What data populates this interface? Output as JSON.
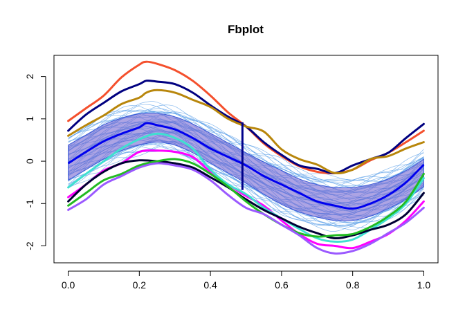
{
  "chart_data": {
    "type": "line",
    "title": "Fbplot",
    "xlabel": "",
    "ylabel": "",
    "xlim": [
      -0.04,
      1.04
    ],
    "ylim": [
      -2.4,
      2.5
    ],
    "x_ticks": [
      0.0,
      0.2,
      0.4,
      0.6,
      0.8,
      1.0
    ],
    "x_tick_labels": [
      "0.0",
      "0.2",
      "0.4",
      "0.6",
      "0.8",
      "1.0"
    ],
    "y_ticks": [
      -2,
      -1,
      0,
      1,
      2
    ],
    "y_tick_labels": [
      "-2",
      "-1",
      "0",
      "1",
      "2"
    ],
    "grid": false,
    "legend": "none",
    "central_region": {
      "color": "#6a5acd",
      "upper": [
        [
          0,
          0.38
        ],
        [
          0.05,
          0.62
        ],
        [
          0.1,
          0.86
        ],
        [
          0.15,
          1.02
        ],
        [
          0.2,
          1.12
        ],
        [
          0.25,
          1.13
        ],
        [
          0.3,
          1.05
        ],
        [
          0.35,
          0.88
        ],
        [
          0.4,
          0.66
        ],
        [
          0.45,
          0.43
        ],
        [
          0.5,
          0.2
        ],
        [
          0.55,
          -0.02
        ],
        [
          0.6,
          -0.22
        ],
        [
          0.65,
          -0.42
        ],
        [
          0.7,
          -0.55
        ],
        [
          0.75,
          -0.62
        ],
        [
          0.8,
          -0.62
        ],
        [
          0.85,
          -0.55
        ],
        [
          0.9,
          -0.42
        ],
        [
          0.95,
          -0.22
        ],
        [
          1.0,
          0.05
        ]
      ],
      "lower": [
        [
          0,
          -0.45
        ],
        [
          0.05,
          -0.2
        ],
        [
          0.1,
          0.05
        ],
        [
          0.15,
          0.25
        ],
        [
          0.2,
          0.38
        ],
        [
          0.25,
          0.45
        ],
        [
          0.3,
          0.38
        ],
        [
          0.35,
          0.2
        ],
        [
          0.4,
          -0.05
        ],
        [
          0.45,
          -0.28
        ],
        [
          0.5,
          -0.52
        ],
        [
          0.55,
          -0.78
        ],
        [
          0.6,
          -1.02
        ],
        [
          0.65,
          -1.2
        ],
        [
          0.7,
          -1.32
        ],
        [
          0.75,
          -1.4
        ],
        [
          0.8,
          -1.4
        ],
        [
          0.85,
          -1.3
        ],
        [
          0.9,
          -1.12
        ],
        [
          0.95,
          -0.9
        ],
        [
          1.0,
          -0.6
        ]
      ]
    },
    "median_curve": {
      "color": "#0000ee",
      "points": [
        [
          0,
          -0.05
        ],
        [
          0.05,
          0.22
        ],
        [
          0.1,
          0.47
        ],
        [
          0.15,
          0.65
        ],
        [
          0.2,
          0.8
        ],
        [
          0.22,
          0.9
        ],
        [
          0.25,
          0.85
        ],
        [
          0.3,
          0.75
        ],
        [
          0.35,
          0.55
        ],
        [
          0.4,
          0.3
        ],
        [
          0.45,
          0.1
        ],
        [
          0.5,
          -0.1
        ],
        [
          0.55,
          -0.35
        ],
        [
          0.6,
          -0.55
        ],
        [
          0.65,
          -0.75
        ],
        [
          0.7,
          -0.95
        ],
        [
          0.75,
          -1.05
        ],
        [
          0.8,
          -1.12
        ],
        [
          0.85,
          -1.0
        ],
        [
          0.9,
          -0.8
        ],
        [
          0.95,
          -0.5
        ],
        [
          1.0,
          -0.08
        ]
      ]
    },
    "whisker": {
      "color": "#00008b",
      "x": 0.49,
      "y_range": [
        -0.68,
        0.92
      ]
    },
    "series": [
      {
        "color": "#f4502d",
        "points": [
          [
            0,
            0.95
          ],
          [
            0.05,
            1.25
          ],
          [
            0.1,
            1.55
          ],
          [
            0.15,
            1.98
          ],
          [
            0.2,
            2.28
          ],
          [
            0.22,
            2.35
          ],
          [
            0.25,
            2.3
          ],
          [
            0.3,
            2.15
          ],
          [
            0.35,
            1.9
          ],
          [
            0.4,
            1.55
          ],
          [
            0.45,
            1.15
          ],
          [
            0.5,
            0.82
          ],
          [
            0.55,
            0.42
          ],
          [
            0.6,
            0.12
          ],
          [
            0.65,
            -0.12
          ],
          [
            0.7,
            -0.25
          ],
          [
            0.75,
            -0.28
          ],
          [
            0.8,
            -0.2
          ],
          [
            0.85,
            0.02
          ],
          [
            0.9,
            0.2
          ],
          [
            0.95,
            0.45
          ],
          [
            1.0,
            0.72
          ]
        ]
      },
      {
        "color": "#000080",
        "points": [
          [
            0,
            0.72
          ],
          [
            0.05,
            1.1
          ],
          [
            0.1,
            1.38
          ],
          [
            0.15,
            1.65
          ],
          [
            0.2,
            1.82
          ],
          [
            0.22,
            1.9
          ],
          [
            0.25,
            1.88
          ],
          [
            0.3,
            1.82
          ],
          [
            0.35,
            1.62
          ],
          [
            0.4,
            1.32
          ],
          [
            0.45,
            1.05
          ],
          [
            0.5,
            0.82
          ],
          [
            0.55,
            0.45
          ],
          [
            0.6,
            0.15
          ],
          [
            0.65,
            -0.1
          ],
          [
            0.7,
            -0.18
          ],
          [
            0.75,
            -0.28
          ],
          [
            0.8,
            -0.1
          ],
          [
            0.85,
            0.05
          ],
          [
            0.9,
            0.2
          ],
          [
            0.95,
            0.55
          ],
          [
            1.0,
            0.88
          ]
        ]
      },
      {
        "color": "#b8860b",
        "points": [
          [
            0,
            0.6
          ],
          [
            0.05,
            0.85
          ],
          [
            0.1,
            1.08
          ],
          [
            0.15,
            1.35
          ],
          [
            0.2,
            1.5
          ],
          [
            0.22,
            1.62
          ],
          [
            0.25,
            1.68
          ],
          [
            0.3,
            1.62
          ],
          [
            0.35,
            1.45
          ],
          [
            0.4,
            1.28
          ],
          [
            0.45,
            1.0
          ],
          [
            0.5,
            0.82
          ],
          [
            0.55,
            0.7
          ],
          [
            0.6,
            0.28
          ],
          [
            0.65,
            0.05
          ],
          [
            0.7,
            -0.08
          ],
          [
            0.75,
            -0.28
          ],
          [
            0.8,
            -0.2
          ],
          [
            0.85,
            0.05
          ],
          [
            0.9,
            0.12
          ],
          [
            0.95,
            0.3
          ],
          [
            1.0,
            0.45
          ]
        ]
      },
      {
        "color": "#ff00ff",
        "points": [
          [
            0,
            -0.85
          ],
          [
            0.05,
            -0.55
          ],
          [
            0.1,
            -0.22
          ],
          [
            0.15,
            -0.05
          ],
          [
            0.2,
            0.22
          ],
          [
            0.25,
            0.25
          ],
          [
            0.3,
            0.22
          ],
          [
            0.35,
            0.1
          ],
          [
            0.4,
            -0.25
          ],
          [
            0.45,
            -0.55
          ],
          [
            0.5,
            -0.82
          ],
          [
            0.55,
            -1.05
          ],
          [
            0.6,
            -1.4
          ],
          [
            0.65,
            -1.72
          ],
          [
            0.7,
            -1.95
          ],
          [
            0.75,
            -2.0
          ],
          [
            0.8,
            -2.05
          ],
          [
            0.85,
            -1.9
          ],
          [
            0.9,
            -1.72
          ],
          [
            0.95,
            -1.4
          ],
          [
            1.0,
            -0.95
          ]
        ]
      },
      {
        "color": "#40e0d0",
        "points": [
          [
            0,
            -0.62
          ],
          [
            0.05,
            -0.3
          ],
          [
            0.1,
            0.0
          ],
          [
            0.15,
            0.3
          ],
          [
            0.2,
            0.52
          ],
          [
            0.25,
            0.65
          ],
          [
            0.3,
            0.55
          ],
          [
            0.35,
            0.3
          ],
          [
            0.4,
            -0.2
          ],
          [
            0.45,
            -0.55
          ],
          [
            0.5,
            -0.78
          ],
          [
            0.55,
            -1.1
          ],
          [
            0.6,
            -1.35
          ],
          [
            0.65,
            -1.6
          ],
          [
            0.7,
            -1.82
          ],
          [
            0.75,
            -1.9
          ],
          [
            0.8,
            -1.85
          ],
          [
            0.85,
            -1.62
          ],
          [
            0.9,
            -1.35
          ],
          [
            0.95,
            -1.0
          ],
          [
            1.0,
            -0.4
          ]
        ]
      },
      {
        "color": "#000033",
        "points": [
          [
            0,
            -0.95
          ],
          [
            0.05,
            -0.55
          ],
          [
            0.1,
            -0.25
          ],
          [
            0.15,
            -0.05
          ],
          [
            0.2,
            0.02
          ],
          [
            0.25,
            0.0
          ],
          [
            0.3,
            -0.05
          ],
          [
            0.35,
            -0.15
          ],
          [
            0.4,
            -0.38
          ],
          [
            0.45,
            -0.62
          ],
          [
            0.5,
            -0.9
          ],
          [
            0.55,
            -1.15
          ],
          [
            0.6,
            -1.35
          ],
          [
            0.65,
            -1.55
          ],
          [
            0.7,
            -1.7
          ],
          [
            0.75,
            -1.82
          ],
          [
            0.8,
            -1.75
          ],
          [
            0.85,
            -1.62
          ],
          [
            0.9,
            -1.5
          ],
          [
            0.95,
            -1.25
          ],
          [
            1.0,
            -0.75
          ]
        ]
      },
      {
        "color": "#22bb22",
        "points": [
          [
            0,
            -1.05
          ],
          [
            0.05,
            -0.75
          ],
          [
            0.1,
            -0.45
          ],
          [
            0.15,
            -0.3
          ],
          [
            0.2,
            -0.1
          ],
          [
            0.25,
            0.0
          ],
          [
            0.3,
            0.05
          ],
          [
            0.35,
            -0.05
          ],
          [
            0.4,
            -0.3
          ],
          [
            0.45,
            -0.6
          ],
          [
            0.5,
            -0.95
          ],
          [
            0.55,
            -1.25
          ],
          [
            0.6,
            -1.5
          ],
          [
            0.65,
            -1.7
          ],
          [
            0.7,
            -1.78
          ],
          [
            0.75,
            -1.75
          ],
          [
            0.8,
            -1.72
          ],
          [
            0.85,
            -1.55
          ],
          [
            0.9,
            -1.3
          ],
          [
            0.95,
            -0.95
          ],
          [
            1.0,
            -0.3
          ]
        ]
      },
      {
        "color": "#9b59ff",
        "points": [
          [
            0,
            -1.15
          ],
          [
            0.05,
            -0.9
          ],
          [
            0.1,
            -0.55
          ],
          [
            0.15,
            -0.35
          ],
          [
            0.2,
            -0.15
          ],
          [
            0.25,
            -0.05
          ],
          [
            0.3,
            -0.1
          ],
          [
            0.35,
            -0.2
          ],
          [
            0.4,
            -0.45
          ],
          [
            0.45,
            -0.8
          ],
          [
            0.5,
            -1.1
          ],
          [
            0.55,
            -1.25
          ],
          [
            0.6,
            -1.5
          ],
          [
            0.65,
            -1.75
          ],
          [
            0.7,
            -2.05
          ],
          [
            0.75,
            -2.18
          ],
          [
            0.8,
            -2.12
          ],
          [
            0.85,
            -1.95
          ],
          [
            0.9,
            -1.7
          ],
          [
            0.95,
            -1.45
          ],
          [
            1.0,
            -1.1
          ]
        ]
      }
    ]
  }
}
